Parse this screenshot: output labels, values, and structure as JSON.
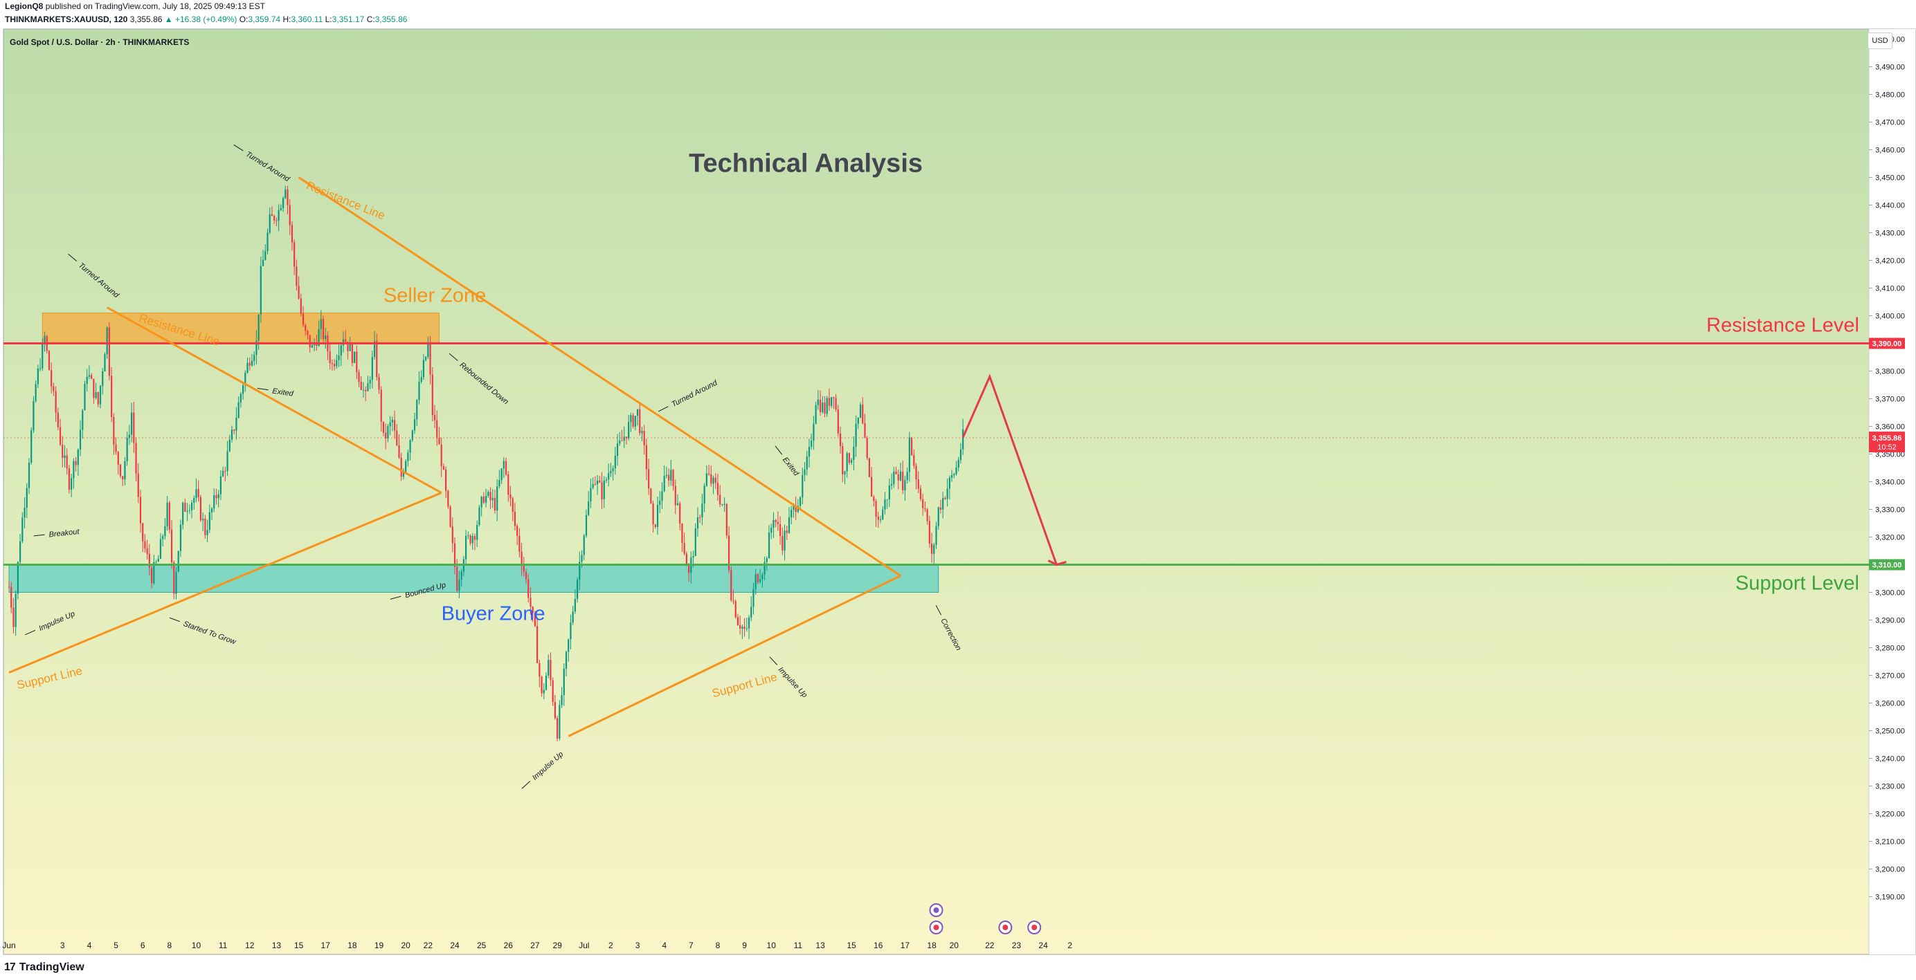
{
  "header": {
    "author": "LegionQ8",
    "published": "published on TradingView.com, July 18, 2025 09:49:13 EST",
    "symbol": "THINKMARKETS:XAUUSD, 120",
    "last": "3,355.86",
    "change": "▲ +16.38 (+0.49%)",
    "o_label": "O:",
    "o": "3,359.74",
    "h_label": "H:",
    "h": "3,360.11",
    "l_label": "L:",
    "l": "3,351.17",
    "c_label": "C:",
    "c": "3,355.86"
  },
  "pane_title": "Gold Spot / U.S. Dollar · 2h · THINKMARKETS",
  "currency": "USD",
  "footer": {
    "logo": "17",
    "brand": "TradingView"
  },
  "colors": {
    "bull": "#089981",
    "bear": "#f23645",
    "resistance": "#f23645",
    "support": "#4caf50",
    "trend": "#f7931a",
    "seller_zone": "#f0b24a",
    "buyer_zone": "#5fd0c4",
    "forecast": "#e53950"
  },
  "chart_data": {
    "type": "candlestick",
    "title": "Technical Analysis",
    "price_range": [
      3185,
      3510
    ],
    "y_ticks": [
      3190,
      3200,
      3210,
      3220,
      3230,
      3240,
      3250,
      3260,
      3270,
      3280,
      3290,
      3300,
      3310,
      3320,
      3330,
      3340,
      3350,
      3360,
      3370,
      3380,
      3390,
      3400,
      3410,
      3420,
      3430,
      3440,
      3450,
      3460,
      3470,
      3480,
      3490,
      3500
    ],
    "x_ticks": [
      {
        "label": "Jun",
        "b": 0
      },
      {
        "label": "3",
        "b": 24
      },
      {
        "label": "4",
        "b": 36
      },
      {
        "label": "5",
        "b": 48
      },
      {
        "label": "6",
        "b": 60
      },
      {
        "label": "8",
        "b": 72
      },
      {
        "label": "10",
        "b": 84
      },
      {
        "label": "11",
        "b": 96
      },
      {
        "label": "12",
        "b": 108
      },
      {
        "label": "13",
        "b": 120
      },
      {
        "label": "15",
        "b": 130
      },
      {
        "label": "17",
        "b": 142
      },
      {
        "label": "18",
        "b": 154
      },
      {
        "label": "19",
        "b": 166
      },
      {
        "label": "20",
        "b": 178
      },
      {
        "label": "22",
        "b": 188
      },
      {
        "label": "24",
        "b": 200
      },
      {
        "label": "25",
        "b": 212
      },
      {
        "label": "26",
        "b": 224
      },
      {
        "label": "27",
        "b": 236
      },
      {
        "label": "29",
        "b": 246
      },
      {
        "label": "Jul",
        "b": 258
      },
      {
        "label": "2",
        "b": 270
      },
      {
        "label": "3",
        "b": 282
      },
      {
        "label": "4",
        "b": 294
      },
      {
        "label": "7",
        "b": 306
      },
      {
        "label": "8",
        "b": 318
      },
      {
        "label": "9",
        "b": 330
      },
      {
        "label": "10",
        "b": 342
      },
      {
        "label": "11",
        "b": 354
      },
      {
        "label": "13",
        "b": 364
      },
      {
        "label": "15",
        "b": 378
      },
      {
        "label": "16",
        "b": 390
      },
      {
        "label": "17",
        "b": 402
      },
      {
        "label": "18",
        "b": 414
      },
      {
        "label": "20",
        "b": 424
      },
      {
        "label": "22",
        "b": 440
      },
      {
        "label": "23",
        "b": 452
      },
      {
        "label": "24",
        "b": 464
      },
      {
        "label": "2",
        "b": 476
      }
    ],
    "anchors": [
      [
        0,
        3302
      ],
      [
        2,
        3290
      ],
      [
        5,
        3320
      ],
      [
        8,
        3340
      ],
      [
        12,
        3375
      ],
      [
        16,
        3392
      ],
      [
        19,
        3375
      ],
      [
        24,
        3350
      ],
      [
        27,
        3340
      ],
      [
        31,
        3352
      ],
      [
        35,
        3380
      ],
      [
        40,
        3368
      ],
      [
        44,
        3395
      ],
      [
        47,
        3352
      ],
      [
        51,
        3342
      ],
      [
        55,
        3365
      ],
      [
        59,
        3322
      ],
      [
        64,
        3306
      ],
      [
        67,
        3312
      ],
      [
        71,
        3330
      ],
      [
        74,
        3302
      ],
      [
        78,
        3330
      ],
      [
        84,
        3335
      ],
      [
        88,
        3322
      ],
      [
        93,
        3335
      ],
      [
        97,
        3346
      ],
      [
        101,
        3360
      ],
      [
        105,
        3376
      ],
      [
        108,
        3385
      ],
      [
        111,
        3390
      ],
      [
        113,
        3415
      ],
      [
        117,
        3434
      ],
      [
        121,
        3438
      ],
      [
        124,
        3448
      ],
      [
        128,
        3418
      ],
      [
        132,
        3395
      ],
      [
        136,
        3388
      ],
      [
        140,
        3396
      ],
      [
        145,
        3382
      ],
      [
        150,
        3393
      ],
      [
        155,
        3384
      ],
      [
        160,
        3370
      ],
      [
        164,
        3388
      ],
      [
        168,
        3355
      ],
      [
        172,
        3362
      ],
      [
        176,
        3342
      ],
      [
        180,
        3356
      ],
      [
        184,
        3374
      ],
      [
        188,
        3389
      ],
      [
        190,
        3365
      ],
      [
        194,
        3348
      ],
      [
        198,
        3322
      ],
      [
        201,
        3303
      ],
      [
        205,
        3318
      ],
      [
        209,
        3322
      ],
      [
        213,
        3335
      ],
      [
        218,
        3332
      ],
      [
        222,
        3347
      ],
      [
        226,
        3328
      ],
      [
        230,
        3312
      ],
      [
        233,
        3300
      ],
      [
        236,
        3285
      ],
      [
        239,
        3262
      ],
      [
        242,
        3274
      ],
      [
        246,
        3250
      ],
      [
        250,
        3276
      ],
      [
        254,
        3300
      ],
      [
        258,
        3322
      ],
      [
        262,
        3342
      ],
      [
        266,
        3336
      ],
      [
        270,
        3346
      ],
      [
        274,
        3353
      ],
      [
        278,
        3360
      ],
      [
        282,
        3365
      ],
      [
        286,
        3346
      ],
      [
        289,
        3322
      ],
      [
        293,
        3338
      ],
      [
        297,
        3344
      ],
      [
        301,
        3325
      ],
      [
        305,
        3306
      ],
      [
        309,
        3325
      ],
      [
        313,
        3342
      ],
      [
        317,
        3338
      ],
      [
        321,
        3330
      ],
      [
        324,
        3300
      ],
      [
        327,
        3290
      ],
      [
        331,
        3285
      ],
      [
        335,
        3305
      ],
      [
        339,
        3310
      ],
      [
        343,
        3328
      ],
      [
        347,
        3318
      ],
      [
        351,
        3328
      ],
      [
        355,
        3336
      ],
      [
        359,
        3350
      ],
      [
        362,
        3370
      ],
      [
        366,
        3366
      ],
      [
        370,
        3373
      ],
      [
        374,
        3345
      ],
      [
        378,
        3350
      ],
      [
        382,
        3366
      ],
      [
        386,
        3340
      ],
      [
        390,
        3325
      ],
      [
        394,
        3335
      ],
      [
        398,
        3345
      ],
      [
        402,
        3338
      ],
      [
        404,
        3355
      ],
      [
        408,
        3338
      ],
      [
        411,
        3330
      ],
      [
        414,
        3312
      ],
      [
        417,
        3330
      ],
      [
        421,
        3338
      ],
      [
        425,
        3345
      ],
      [
        428,
        3356
      ]
    ],
    "last_bar": 428,
    "resistance_level": {
      "price": 3390.0,
      "label": "Resistance Level",
      "tag": "3,390.00"
    },
    "support_level": {
      "price": 3310.0,
      "label": "Support Level",
      "tag": "3,310.00"
    },
    "current_price": {
      "price": 3355.86,
      "tag": "3,355.86",
      "countdown": "10:52"
    },
    "zones": [
      {
        "name": "Seller Zone",
        "b1": 15,
        "b2": 193,
        "p_top": 3401,
        "p_bot": 3390
      },
      {
        "name": "Buyer Zone",
        "b1": 0,
        "b2": 417,
        "p_top": 3310,
        "p_bot": 3300
      }
    ],
    "trendlines": [
      {
        "b1": 0,
        "p1": 3271,
        "b2": 194,
        "p2": 3336
      },
      {
        "b1": 44,
        "p1": 3403,
        "b2": 194,
        "p2": 3336
      },
      {
        "b1": 130,
        "p1": 3450,
        "b2": 400,
        "p2": 3306
      },
      {
        "b1": 251,
        "p1": 3248,
        "b2": 400,
        "p2": 3306
      }
    ],
    "forecast": [
      [
        428,
        3356
      ],
      [
        440,
        3378
      ],
      [
        470,
        3310
      ]
    ],
    "labels": [
      {
        "text": "Resistance Line",
        "b": 58,
        "p": 3398,
        "angle": 17,
        "size": 17,
        "kind": "trend"
      },
      {
        "text": "Resistance Line",
        "b": 133,
        "p": 3446,
        "angle": 22,
        "size": 17,
        "kind": "trend"
      },
      {
        "text": "Support Line",
        "b": 4,
        "p": 3265,
        "angle": -13,
        "size": 17,
        "kind": "trend"
      },
      {
        "text": "Support Line",
        "b": 316,
        "p": 3262,
        "angle": -15,
        "size": 17,
        "kind": "trend"
      },
      {
        "text": "Seller Zone",
        "b": 168,
        "p": 3405,
        "angle": 0,
        "size": 29,
        "kind": "zone-s"
      },
      {
        "text": "Buyer Zone",
        "b": 194,
        "p": 3290,
        "angle": 0,
        "size": 29,
        "kind": "zone-b"
      },
      {
        "text": "Technical Analysis",
        "b": 305,
        "p": 3452,
        "angle": 0,
        "size": 38,
        "kind": "title"
      },
      {
        "text": "Turned Around",
        "b": 106,
        "p": 3458,
        "angle": 32,
        "size": 11,
        "kind": "ann"
      },
      {
        "text": "Turned Around",
        "b": 31,
        "p": 3418,
        "angle": 40,
        "size": 11,
        "kind": "ann"
      },
      {
        "text": "Exited",
        "b": 118,
        "p": 3372,
        "angle": 8,
        "size": 11,
        "kind": "ann"
      },
      {
        "text": "Breakout",
        "b": 18,
        "p": 3320,
        "angle": -6,
        "size": 11,
        "kind": "ann"
      },
      {
        "text": "Impulse Up",
        "b": 14,
        "p": 3286,
        "angle": -24,
        "size": 11,
        "kind": "ann"
      },
      {
        "text": "Started To Grow",
        "b": 78,
        "p": 3288,
        "angle": 20,
        "size": 11,
        "kind": "ann"
      },
      {
        "text": "Rebounded Down",
        "b": 202,
        "p": 3382,
        "angle": 40,
        "size": 11,
        "kind": "ann"
      },
      {
        "text": "Bounced Up",
        "b": 178,
        "p": 3298,
        "angle": -15,
        "size": 11,
        "kind": "ann"
      },
      {
        "text": "Impulse Up",
        "b": 236,
        "p": 3232,
        "angle": -42,
        "size": 11,
        "kind": "ann"
      },
      {
        "text": "Turned Around",
        "b": 298,
        "p": 3367,
        "angle": -27,
        "size": 11,
        "kind": "ann"
      },
      {
        "text": "Exited",
        "b": 347,
        "p": 3348,
        "angle": 52,
        "size": 11,
        "kind": "ann"
      },
      {
        "text": "Impulse Up",
        "b": 345,
        "p": 3272,
        "angle": 47,
        "size": 11,
        "kind": "ann"
      },
      {
        "text": "Correction",
        "b": 418,
        "p": 3290,
        "angle": 62,
        "size": 11,
        "kind": "ann"
      }
    ]
  }
}
